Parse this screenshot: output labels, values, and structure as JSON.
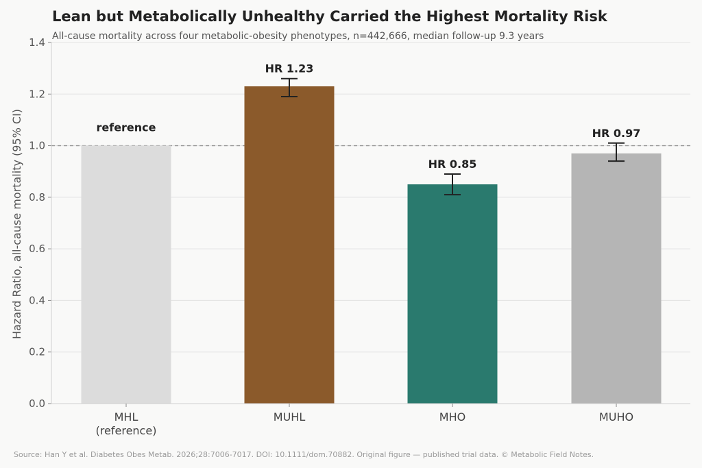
{
  "chart_data": {
    "type": "bar",
    "title": "Lean but Metabolically Unhealthy Carried the Highest Mortality Risk",
    "subtitle": "All-cause mortality across four metabolic-obesity phenotypes, n=442,666, median follow-up 9.3 years",
    "xlabel": "",
    "ylabel": "Hazard Ratio, all-cause mortality (95% CI)",
    "ylim": [
      0,
      1.4
    ],
    "yticks": [
      "0.0",
      "0.2",
      "0.4",
      "0.6",
      "0.8",
      "1.0",
      "1.2",
      "1.4"
    ],
    "reference_line": 1.0,
    "grid": true,
    "categories": [
      {
        "label": "MHL",
        "label2": "(reference)",
        "value": 1.0,
        "ci_low": null,
        "ci_high": null,
        "annotation": "reference",
        "color": "#dcdcdc"
      },
      {
        "label": "MUHL",
        "label2": "",
        "value": 1.23,
        "ci_low": 1.19,
        "ci_high": 1.26,
        "annotation": "HR 1.23",
        "color": "#8b5a2b"
      },
      {
        "label": "MHO",
        "label2": "",
        "value": 0.85,
        "ci_low": 0.81,
        "ci_high": 0.89,
        "annotation": "HR 0.85",
        "color": "#2a7a6e"
      },
      {
        "label": "MUHO",
        "label2": "",
        "value": 0.97,
        "ci_low": 0.94,
        "ci_high": 1.01,
        "annotation": "HR 0.97",
        "color": "#b5b5b5"
      }
    ]
  },
  "footer": {
    "source": "Source: Han Y et al. Diabetes Obes Metab. 2026;28:7006-7017. DOI: 10.1111/dom.70882. Original figure — published trial data. © Metabolic Field Notes."
  }
}
